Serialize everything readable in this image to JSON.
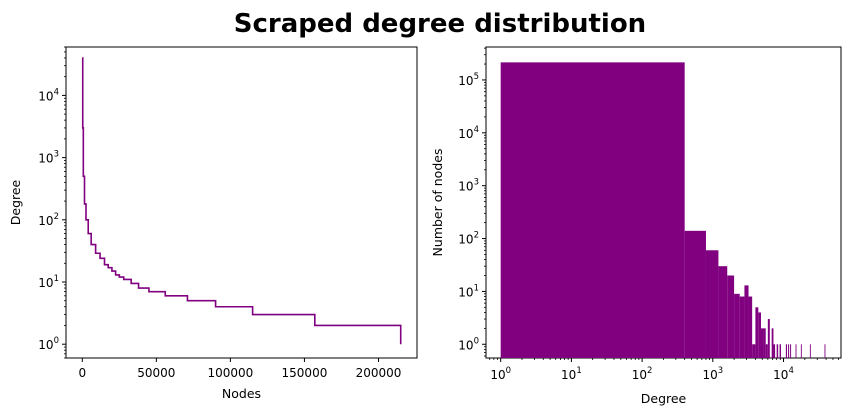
{
  "figure": {
    "title": "Scraped degree distribution"
  },
  "chart_data": [
    {
      "type": "line",
      "xlabel": "Nodes",
      "ylabel": "Degree",
      "yscale": "log",
      "xlim": [
        -11000,
        226000
      ],
      "ylim": [
        0.6,
        60000
      ],
      "xticks": [
        0,
        50000,
        100000,
        150000,
        200000
      ],
      "xtick_labels": [
        "0",
        "50000",
        "100000",
        "150000",
        "200000"
      ],
      "yticks": [
        1,
        10,
        100,
        1000,
        10000
      ],
      "ytick_labels": [
        [
          "10",
          "0"
        ],
        [
          "10",
          "1"
        ],
        [
          "10",
          "2"
        ],
        [
          "10",
          "3"
        ],
        [
          "10",
          "4"
        ]
      ],
      "color": "#800080",
      "grid": false,
      "series": [
        {
          "x": [
            0,
            300,
            700,
            1500,
            2500,
            4000,
            6000,
            9000,
            12000,
            15000,
            17500,
            20000,
            22500,
            25000,
            28000,
            33000,
            38000,
            45000,
            56000,
            71000,
            90000,
            115000,
            157000,
            215000
          ],
          "y": [
            40000,
            3000,
            500,
            180,
            100,
            60,
            40,
            29,
            24,
            19,
            17,
            15,
            13,
            12,
            11,
            9.5,
            8,
            7,
            6,
            5,
            4,
            3,
            2,
            1
          ]
        }
      ]
    },
    {
      "type": "bar",
      "histogram": true,
      "xlabel": "Degree",
      "ylabel": "Number of nodes",
      "xscale": "log",
      "yscale": "log",
      "xlim": [
        0.62,
        65000
      ],
      "ylim": [
        0.55,
        420000
      ],
      "xticks": [
        1,
        10,
        100,
        1000,
        10000
      ],
      "xtick_labels": [
        [
          "10",
          "0"
        ],
        [
          "10",
          "1"
        ],
        [
          "10",
          "2"
        ],
        [
          "10",
          "3"
        ],
        [
          "10",
          "4"
        ]
      ],
      "yticks": [
        1,
        10,
        100,
        1000,
        10000,
        100000
      ],
      "ytick_labels": [
        [
          "10",
          "0"
        ],
        [
          "10",
          "1"
        ],
        [
          "10",
          "2"
        ],
        [
          "10",
          "3"
        ],
        [
          "10",
          "4"
        ],
        [
          "10",
          "5"
        ]
      ],
      "color": "#800080",
      "grid": false,
      "bins": [
        {
          "x0": 1,
          "x1": 400,
          "count": 215000
        },
        {
          "x0": 400,
          "x1": 800,
          "count": 140
        },
        {
          "x0": 800,
          "x1": 1200,
          "count": 60
        },
        {
          "x0": 1200,
          "x1": 1600,
          "count": 30
        },
        {
          "x0": 1600,
          "x1": 2000,
          "count": 20
        },
        {
          "x0": 2000,
          "x1": 2400,
          "count": 9
        },
        {
          "x0": 2400,
          "x1": 2800,
          "count": 8
        },
        {
          "x0": 2800,
          "x1": 3200,
          "count": 13
        },
        {
          "x0": 3200,
          "x1": 3600,
          "count": 8
        },
        {
          "x0": 3600,
          "x1": 4000,
          "count": 1
        },
        {
          "x0": 4000,
          "x1": 4400,
          "count": 5
        },
        {
          "x0": 4400,
          "x1": 4800,
          "count": 4
        },
        {
          "x0": 4800,
          "x1": 5200,
          "count": 2
        },
        {
          "x0": 5200,
          "x1": 5600,
          "count": 2
        },
        {
          "x0": 5600,
          "x1": 6000,
          "count": 1
        },
        {
          "x0": 6000,
          "x1": 6400,
          "count": 3
        },
        {
          "x0": 6800,
          "x1": 7200,
          "count": 2
        },
        {
          "x0": 7200,
          "x1": 7600,
          "count": 1
        },
        {
          "x0": 8000,
          "x1": 8400,
          "count": 1
        },
        {
          "x0": 8800,
          "x1": 9200,
          "count": 1
        },
        {
          "x0": 10800,
          "x1": 11200,
          "count": 1
        },
        {
          "x0": 11600,
          "x1": 12000,
          "count": 1
        },
        {
          "x0": 12400,
          "x1": 12800,
          "count": 1
        },
        {
          "x0": 14800,
          "x1": 15200,
          "count": 1
        },
        {
          "x0": 17600,
          "x1": 18000,
          "count": 1
        },
        {
          "x0": 23600,
          "x1": 24000,
          "count": 1
        },
        {
          "x0": 38000,
          "x1": 39000,
          "count": 1
        }
      ]
    }
  ]
}
